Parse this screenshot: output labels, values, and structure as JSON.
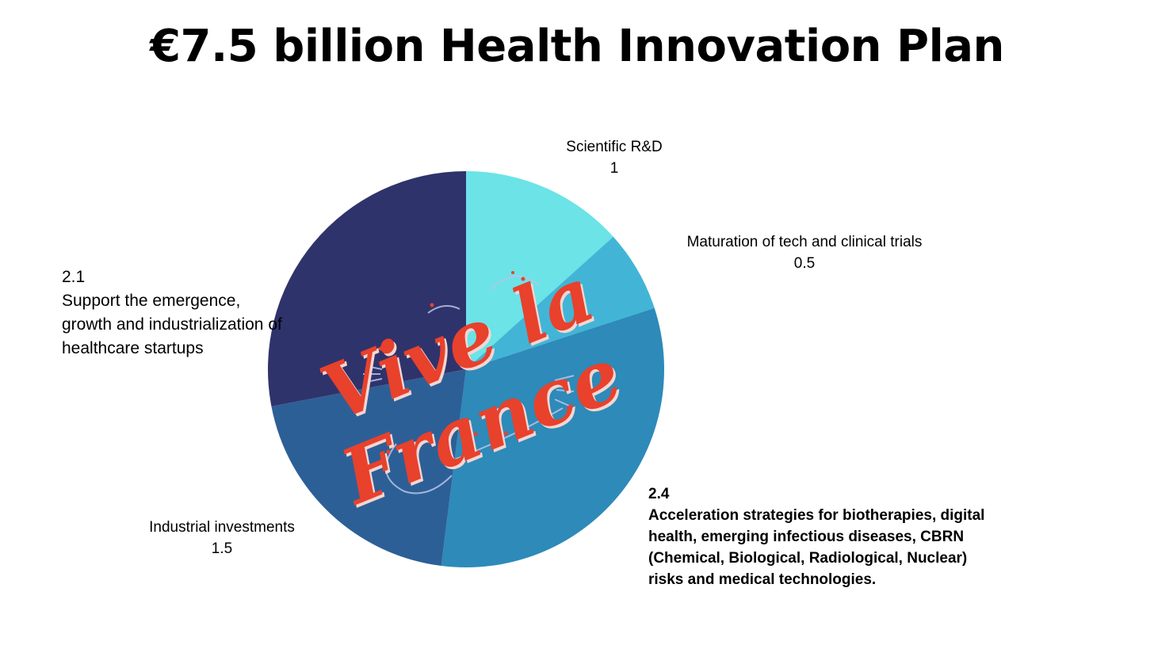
{
  "title": "€7.5 billion Health Innovation Plan",
  "chart_data": {
    "type": "pie",
    "title": "€7.5 billion Health Innovation Plan",
    "slices": [
      {
        "label": "Scientific R&D",
        "value": 1,
        "value_label": "1",
        "color": "#6be3e7"
      },
      {
        "label": "Maturation of tech and clinical trials",
        "value": 0.5,
        "value_label": "0.5",
        "color": "#42b5d6"
      },
      {
        "label": "Acceleration strategies for biotherapies, digital health, emerging infectious diseases, CBRN (Chemical, Biological, Radiological, Nuclear) risks and medical technologies.",
        "value": 2.4,
        "value_label": "2.4",
        "color": "#2d8ab9"
      },
      {
        "label": "Industrial investments",
        "value": 1.5,
        "value_label": "1.5",
        "color": "#2d5f97"
      },
      {
        "label": "Support the emergence, growth and industrialization of healthcare startups",
        "value": 2.1,
        "value_label": "2.1",
        "color": "#2f336b"
      }
    ],
    "start_angle": "12 o'clock",
    "direction": "clockwise",
    "legend": "none"
  },
  "watermark": {
    "text": "Vive la France",
    "color": "#e8412c"
  }
}
